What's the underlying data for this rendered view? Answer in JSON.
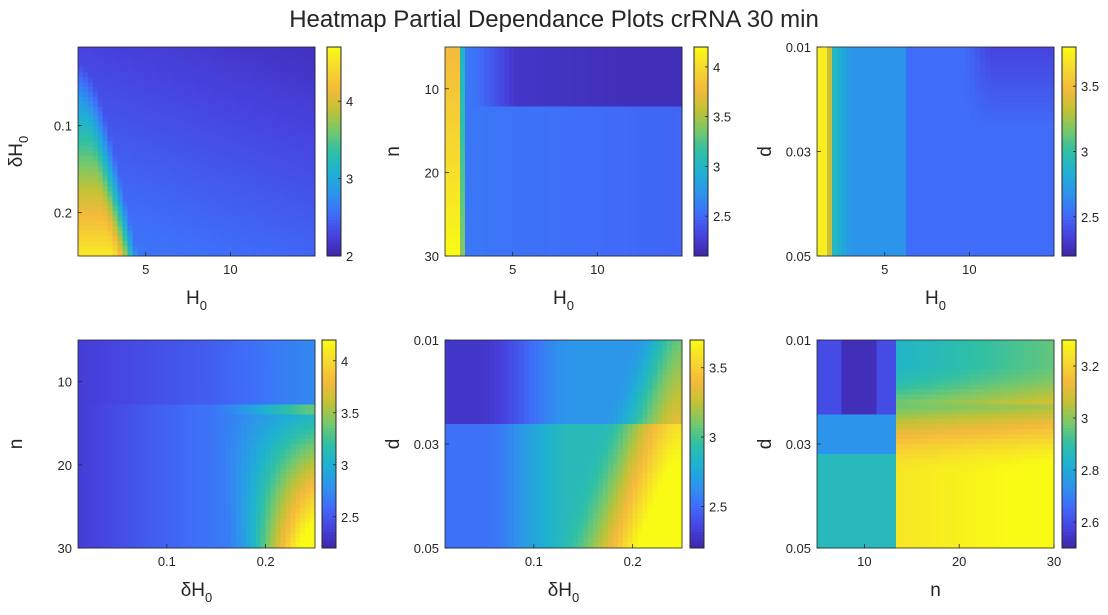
{
  "title": "Heatmap Partial Dependance Plots crRNA 30 min",
  "colormap": [
    "#3e26a8",
    "#4743e0",
    "#3f6df9",
    "#2d94ec",
    "#1eb1d2",
    "#2fc0a6",
    "#78c86a",
    "#c2c236",
    "#f5ba3c",
    "#f6d92f",
    "#f9fb15"
  ],
  "chart_data": [
    {
      "type": "heatmap",
      "xlabel": "H",
      "xlabel_sub": "0",
      "ylabel": "δH",
      "ylabel_sub": "0",
      "xlim": [
        1,
        15
      ],
      "ylim": [
        0.01,
        0.25
      ],
      "y_reversed": true,
      "xticks": [
        5,
        10
      ],
      "xtick_labels": [
        "5",
        "10"
      ],
      "yticks": [
        0.1,
        0.2
      ],
      "ytick_labels": [
        "0.1",
        "0.2"
      ],
      "clim": [
        2,
        4.7
      ],
      "cticks": [
        2,
        3,
        4
      ],
      "ctick_labels": [
        "2",
        "3",
        "4"
      ],
      "grid": false
    },
    {
      "type": "heatmap",
      "xlabel": "H",
      "xlabel_sub": "0",
      "ylabel": "n",
      "ylabel_sub": "",
      "xlim": [
        1,
        15
      ],
      "ylim": [
        5,
        30
      ],
      "y_reversed": true,
      "xticks": [
        5,
        10
      ],
      "xtick_labels": [
        "5",
        "10"
      ],
      "yticks": [
        10,
        20,
        30
      ],
      "ytick_labels": [
        "10",
        "20",
        "30"
      ],
      "clim": [
        2.1,
        4.2
      ],
      "cticks": [
        2.5,
        3,
        3.5,
        4
      ],
      "ctick_labels": [
        "2.5",
        "3",
        "3.5",
        "4"
      ],
      "grid": false
    },
    {
      "type": "heatmap",
      "xlabel": "H",
      "xlabel_sub": "0",
      "ylabel": "d",
      "ylabel_sub": "",
      "xlim": [
        1,
        15
      ],
      "ylim": [
        0.01,
        0.05
      ],
      "y_reversed": true,
      "xticks": [
        5,
        10
      ],
      "xtick_labels": [
        "5",
        "10"
      ],
      "yticks": [
        0.01,
        0.03,
        0.05
      ],
      "ytick_labels": [
        "0.01",
        "0.03",
        "0.05"
      ],
      "clim": [
        2.2,
        3.8
      ],
      "cticks": [
        2.5,
        3,
        3.5
      ],
      "ctick_labels": [
        "2.5",
        "3",
        "3.5"
      ],
      "grid": false
    },
    {
      "type": "heatmap",
      "xlabel": "δH",
      "xlabel_sub": "0",
      "ylabel": "n",
      "ylabel_sub": "",
      "xlim": [
        0.01,
        0.25
      ],
      "ylim": [
        5,
        30
      ],
      "y_reversed": true,
      "xticks": [
        0.1,
        0.2
      ],
      "xtick_labels": [
        "0.1",
        "0.2"
      ],
      "yticks": [
        10,
        20,
        30
      ],
      "ytick_labels": [
        "10",
        "20",
        "30"
      ],
      "clim": [
        2.2,
        4.2
      ],
      "cticks": [
        2.5,
        3,
        3.5,
        4
      ],
      "ctick_labels": [
        "2.5",
        "3",
        "3.5",
        "4"
      ],
      "grid": false
    },
    {
      "type": "heatmap",
      "xlabel": "δH",
      "xlabel_sub": "0",
      "ylabel": "d",
      "ylabel_sub": "",
      "xlim": [
        0.01,
        0.25
      ],
      "ylim": [
        0.01,
        0.05
      ],
      "y_reversed": true,
      "xticks": [
        0.1,
        0.2
      ],
      "xtick_labels": [
        "0.1",
        "0.2"
      ],
      "yticks": [
        0.01,
        0.03,
        0.05
      ],
      "ytick_labels": [
        "0.01",
        "0.03",
        "0.05"
      ],
      "clim": [
        2.2,
        3.7
      ],
      "cticks": [
        2.5,
        3,
        3.5
      ],
      "ctick_labels": [
        "2.5",
        "3",
        "3.5"
      ],
      "grid": false
    },
    {
      "type": "heatmap",
      "xlabel": "n",
      "xlabel_sub": "",
      "ylabel": "d",
      "ylabel_sub": "",
      "xlim": [
        5,
        30
      ],
      "ylim": [
        0.01,
        0.05
      ],
      "y_reversed": true,
      "xticks": [
        10,
        20,
        30
      ],
      "xtick_labels": [
        "10",
        "20",
        "30"
      ],
      "yticks": [
        0.01,
        0.03,
        0.05
      ],
      "ytick_labels": [
        "0.01",
        "0.03",
        "0.05"
      ],
      "clim": [
        2.5,
        3.3
      ],
      "cticks": [
        2.6,
        2.8,
        3,
        3.2
      ],
      "ctick_labels": [
        "2.6",
        "2.8",
        "3",
        "3.2"
      ],
      "grid": false
    }
  ]
}
